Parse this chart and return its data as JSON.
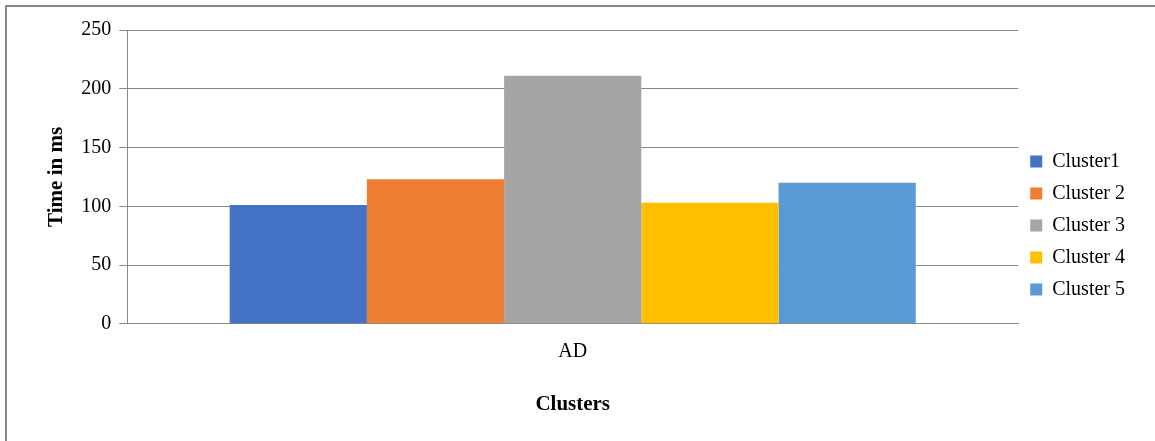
{
  "chart_data": {
    "type": "bar",
    "xlabel": "Clusters",
    "ylabel": "Time in ms",
    "categories": [
      "AD"
    ],
    "series": [
      {
        "name": "Cluster1",
        "color": "#4472c4",
        "values": [
          101
        ]
      },
      {
        "name": "Cluster 2",
        "color": "#ed7d31",
        "values": [
          123
        ]
      },
      {
        "name": "Cluster 3",
        "color": "#a5a5a5",
        "values": [
          211
        ]
      },
      {
        "name": "Cluster 4",
        "color": "#ffc000",
        "values": [
          103
        ]
      },
      {
        "name": "Cluster 5",
        "color": "#5b9bd5",
        "values": [
          120
        ]
      }
    ],
    "ylim": [
      0,
      250
    ],
    "yticks": [
      0,
      50,
      100,
      150,
      200,
      250
    ],
    "grid": "y",
    "legend": "right"
  }
}
